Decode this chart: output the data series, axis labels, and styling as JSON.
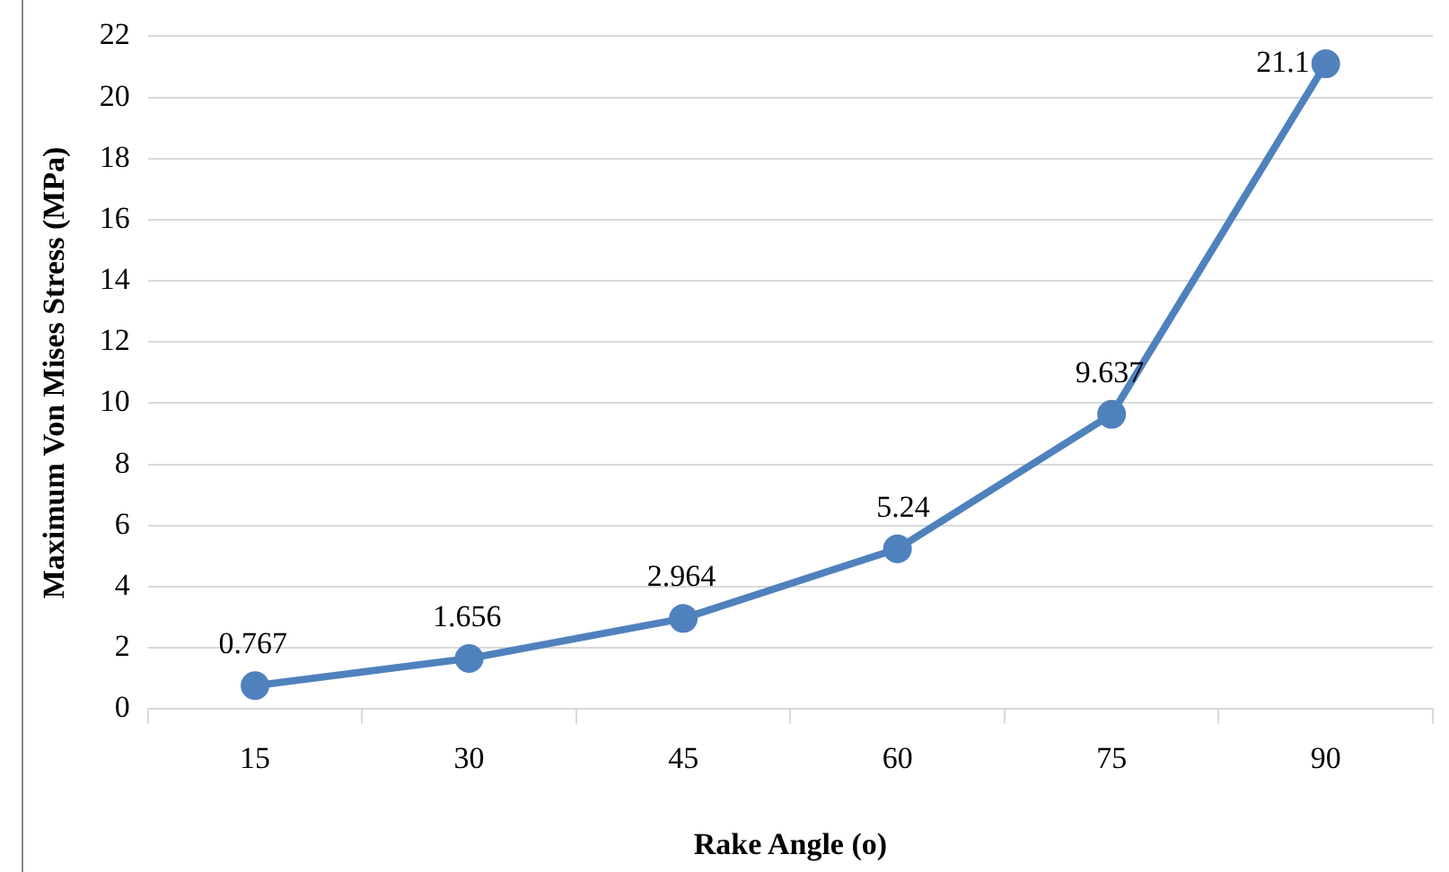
{
  "chart_data": {
    "type": "line",
    "xlabel": "Rake Angle (o)",
    "ylabel": "Maximum Von Mises Stress (MPa)",
    "categories": [
      "15",
      "30",
      "45",
      "60",
      "75",
      "90"
    ],
    "series": [
      {
        "color": "#4f81bd",
        "values": [
          0.767,
          1.656,
          2.964,
          5.24,
          9.637,
          21.1
        ]
      }
    ],
    "ylim": [
      0,
      22
    ],
    "yticks": [
      0,
      2,
      4,
      6,
      8,
      10,
      12,
      14,
      16,
      18,
      20,
      22
    ],
    "grid": "y",
    "legend": false,
    "marker": "circle",
    "line_style": "solid",
    "data_labels": true
  }
}
